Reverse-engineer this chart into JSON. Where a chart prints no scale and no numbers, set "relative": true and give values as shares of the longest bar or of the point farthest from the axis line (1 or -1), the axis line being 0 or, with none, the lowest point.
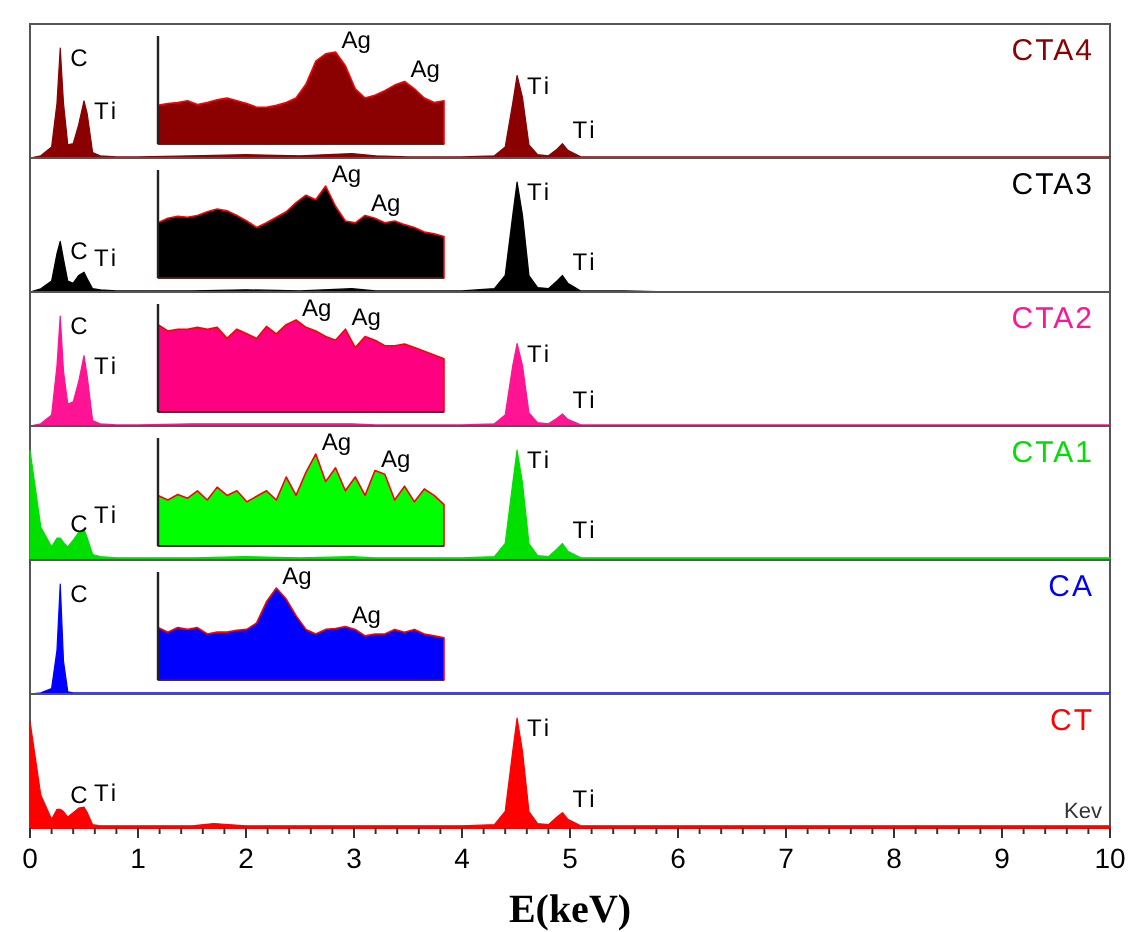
{
  "chart_data": [
    {
      "type": "area",
      "relative": true,
      "legend": "top right",
      "tick_labels": false,
      "xlim": [
        0,
        10
      ],
      "x": [
        0,
        0.1,
        0.2,
        0.25,
        0.28,
        0.31,
        0.35,
        0.4,
        0.45,
        0.5,
        0.53,
        0.58,
        0.65,
        0.8,
        1.0,
        1.5,
        2.0,
        2.5,
        2.98,
        3.2,
        3.5,
        4.0,
        4.3,
        4.4,
        4.47,
        4.51,
        4.56,
        4.62,
        4.7,
        4.8,
        4.88,
        4.93,
        4.98,
        5.1,
        5.5,
        6,
        7,
        8,
        9,
        10
      ],
      "series": [
        {
          "name": "CTA4",
          "color": "#8b0000",
          "values": [
            0,
            0.02,
            0.1,
            0.5,
            1,
            0.5,
            0.12,
            0.13,
            0.3,
            0.52,
            0.4,
            0.05,
            0.02,
            0.01,
            0.01,
            0.02,
            0.03,
            0.02,
            0.04,
            0.02,
            0.01,
            0.01,
            0.02,
            0.1,
            0.5,
            0.75,
            0.55,
            0.12,
            0.03,
            0.02,
            0.08,
            0.13,
            0.07,
            0.01,
            0.01,
            0.01,
            0.01,
            0.01,
            0.01,
            0.01
          ]
        }
      ],
      "annotations": [
        {
          "text": "C",
          "x": 0.28,
          "y": 1
        },
        {
          "text": "Ti",
          "x": 0.5,
          "y": 0.52
        },
        {
          "text": "Ti",
          "x": 4.51,
          "y": 0.75
        },
        {
          "text": "Ti",
          "x": 4.93,
          "y": 0.13
        }
      ]
    },
    {
      "type": "area",
      "relative": true,
      "categories": [
        null,
        null,
        null,
        null,
        null,
        null,
        null,
        null,
        null,
        null,
        null,
        null,
        null,
        null,
        null,
        null,
        null,
        null,
        null,
        null,
        null,
        null,
        null,
        null,
        null,
        null,
        null,
        null,
        null,
        null
      ],
      "series": [
        {
          "color": "#8b0000",
          "values": [
            0.42,
            0.44,
            0.45,
            0.47,
            0.43,
            0.45,
            0.48,
            0.5,
            0.47,
            0.44,
            0.4,
            0.4,
            0.42,
            0.45,
            0.5,
            0.65,
            0.9,
            0.98,
            1,
            0.85,
            0.6,
            0.5,
            0.53,
            0.58,
            0.64,
            0.68,
            0.6,
            0.5,
            0.45,
            0.47
          ]
        }
      ],
      "annotations": [
        "Ag",
        "Ag"
      ]
    },
    {
      "type": "area",
      "relative": true,
      "legend": "top right",
      "tick_labels": false,
      "xlim": [
        0,
        10
      ],
      "x": [
        0,
        0.1,
        0.2,
        0.25,
        0.28,
        0.31,
        0.35,
        0.4,
        0.45,
        0.5,
        0.53,
        0.58,
        0.65,
        0.8,
        1.0,
        1.5,
        2.0,
        2.5,
        2.98,
        3.2,
        3.5,
        4.0,
        4.3,
        4.4,
        4.47,
        4.51,
        4.56,
        4.62,
        4.7,
        4.8,
        4.88,
        4.93,
        4.98,
        5.1,
        5.5,
        6,
        7,
        8,
        9,
        10
      ],
      "series": [
        {
          "name": "CTA3",
          "color": "#000000",
          "values": [
            0,
            0.03,
            0.1,
            0.35,
            0.46,
            0.3,
            0.1,
            0.08,
            0.15,
            0.18,
            0.12,
            0.03,
            0.02,
            0.01,
            0.01,
            0.01,
            0.02,
            0.01,
            0.03,
            0.01,
            0.01,
            0.01,
            0.03,
            0.15,
            0.7,
            1,
            0.7,
            0.15,
            0.04,
            0.03,
            0.1,
            0.15,
            0.08,
            0.01,
            0.01,
            0,
            0,
            0,
            0,
            0
          ]
        }
      ],
      "annotations": [
        {
          "text": "C",
          "x": 0.28,
          "y": 0.46
        },
        {
          "text": "Ti",
          "x": 0.5,
          "y": 0.18
        },
        {
          "text": "Ti",
          "x": 4.51,
          "y": 1
        },
        {
          "text": "Ti",
          "x": 4.93,
          "y": 0.15
        }
      ]
    },
    {
      "type": "area",
      "relative": true,
      "categories": [
        null,
        null,
        null,
        null,
        null,
        null,
        null,
        null,
        null,
        null,
        null,
        null,
        null,
        null,
        null,
        null,
        null,
        null,
        null,
        null,
        null,
        null,
        null,
        null,
        null,
        null,
        null,
        null,
        null,
        null
      ],
      "series": [
        {
          "color": "#000000",
          "values": [
            0.6,
            0.65,
            0.67,
            0.66,
            0.68,
            0.72,
            0.75,
            0.73,
            0.68,
            0.62,
            0.55,
            0.6,
            0.66,
            0.72,
            0.82,
            0.9,
            0.85,
            1,
            0.78,
            0.62,
            0.6,
            0.68,
            0.65,
            0.6,
            0.62,
            0.58,
            0.55,
            0.5,
            0.48,
            0.45
          ]
        }
      ],
      "annotations": [
        "Ag",
        "Ag"
      ]
    },
    {
      "type": "area",
      "relative": true,
      "legend": "top right",
      "tick_labels": false,
      "xlim": [
        0,
        10
      ],
      "x": [
        0,
        0.1,
        0.2,
        0.25,
        0.28,
        0.31,
        0.35,
        0.4,
        0.45,
        0.5,
        0.53,
        0.58,
        0.65,
        0.8,
        1.0,
        1.5,
        2.0,
        2.5,
        2.98,
        3.2,
        3.5,
        4.0,
        4.3,
        4.4,
        4.47,
        4.51,
        4.56,
        4.62,
        4.7,
        4.8,
        4.88,
        4.93,
        4.98,
        5.1,
        5.5,
        6,
        7,
        8,
        9,
        10
      ],
      "series": [
        {
          "name": "CTA2",
          "color": "#ff1493",
          "values": [
            0,
            0.02,
            0.1,
            0.55,
            1,
            0.5,
            0.2,
            0.22,
            0.4,
            0.64,
            0.45,
            0.05,
            0.02,
            0.01,
            0.01,
            0.02,
            0.02,
            0.02,
            0.02,
            0.01,
            0.01,
            0.01,
            0.02,
            0.1,
            0.55,
            0.75,
            0.55,
            0.12,
            0.03,
            0.02,
            0.07,
            0.11,
            0.06,
            0.01,
            0.01,
            0.01,
            0.01,
            0.01,
            0.01,
            0.01
          ]
        }
      ],
      "annotations": [
        {
          "text": "C",
          "x": 0.28,
          "y": 1
        },
        {
          "text": "Ti",
          "x": 0.5,
          "y": 0.64
        },
        {
          "text": "Ti",
          "x": 4.51,
          "y": 0.75
        },
        {
          "text": "Ti",
          "x": 4.93,
          "y": 0.11
        }
      ]
    },
    {
      "type": "area",
      "relative": true,
      "categories": [
        null,
        null,
        null,
        null,
        null,
        null,
        null,
        null,
        null,
        null,
        null,
        null,
        null,
        null,
        null,
        null,
        null,
        null,
        null,
        null,
        null,
        null,
        null,
        null,
        null,
        null,
        null,
        null,
        null,
        null
      ],
      "series": [
        {
          "color": "#ff0080",
          "values": [
            0.95,
            0.88,
            0.9,
            0.9,
            0.92,
            0.9,
            0.92,
            0.8,
            0.9,
            0.85,
            0.8,
            0.93,
            0.85,
            0.95,
            1,
            0.92,
            0.88,
            0.82,
            0.78,
            0.9,
            0.7,
            0.82,
            0.78,
            0.72,
            0.72,
            0.74,
            0.7,
            0.66,
            0.62,
            0.58
          ]
        }
      ],
      "annotations": [
        "Ag",
        "Ag"
      ]
    },
    {
      "type": "area",
      "relative": true,
      "legend": "top right",
      "tick_labels": false,
      "xlim": [
        0,
        10
      ],
      "x": [
        0,
        0.1,
        0.2,
        0.25,
        0.28,
        0.31,
        0.35,
        0.4,
        0.45,
        0.5,
        0.53,
        0.58,
        0.65,
        0.8,
        1.0,
        1.5,
        2.0,
        2.5,
        2.98,
        3.2,
        3.5,
        4.0,
        4.3,
        4.4,
        4.47,
        4.51,
        4.56,
        4.62,
        4.7,
        4.8,
        4.88,
        4.93,
        4.98,
        5.1,
        5.5,
        6,
        7,
        8,
        9,
        10
      ],
      "series": [
        {
          "name": "CTA1",
          "color": "#00e000",
          "values": [
            1,
            0.3,
            0.12,
            0.2,
            0.2,
            0.16,
            0.12,
            0.18,
            0.25,
            0.28,
            0.2,
            0.05,
            0.03,
            0.02,
            0.02,
            0.02,
            0.03,
            0.02,
            0.03,
            0.02,
            0.02,
            0.02,
            0.03,
            0.15,
            0.7,
            1,
            0.7,
            0.15,
            0.04,
            0.03,
            0.1,
            0.15,
            0.08,
            0.02,
            0.02,
            0.02,
            0.02,
            0.02,
            0.02,
            0.02
          ]
        }
      ],
      "annotations": [
        {
          "text": "C",
          "x": 0.28,
          "y": 0.2
        },
        {
          "text": "Ti",
          "x": 0.5,
          "y": 0.28
        },
        {
          "text": "Ti",
          "x": 4.51,
          "y": 1
        },
        {
          "text": "Ti",
          "x": 4.93,
          "y": 0.15
        }
      ]
    },
    {
      "type": "area",
      "relative": true,
      "categories": [
        null,
        null,
        null,
        null,
        null,
        null,
        null,
        null,
        null,
        null,
        null,
        null,
        null,
        null,
        null,
        null,
        null,
        null,
        null,
        null,
        null,
        null,
        null,
        null,
        null,
        null,
        null,
        null,
        null,
        null
      ],
      "series": [
        {
          "color": "#00ff00",
          "values": [
            0.55,
            0.5,
            0.56,
            0.52,
            0.6,
            0.5,
            0.64,
            0.55,
            0.6,
            0.48,
            0.54,
            0.6,
            0.5,
            0.75,
            0.55,
            0.8,
            1,
            0.7,
            0.85,
            0.6,
            0.75,
            0.55,
            0.82,
            0.78,
            0.5,
            0.65,
            0.48,
            0.62,
            0.55,
            0.45
          ]
        }
      ],
      "annotations": [
        "Ag",
        "Ag"
      ]
    },
    {
      "type": "area",
      "relative": true,
      "legend": "top right",
      "tick_labels": false,
      "xlim": [
        0,
        10
      ],
      "x": [
        0,
        0.1,
        0.2,
        0.25,
        0.28,
        0.31,
        0.35,
        0.4,
        0.5,
        1,
        2,
        3,
        4,
        5,
        6,
        7,
        8,
        9,
        10
      ],
      "series": [
        {
          "name": "CA",
          "color": "#0000ff",
          "values": [
            0,
            0.01,
            0.05,
            0.4,
            1,
            0.3,
            0.02,
            0.01,
            0.01,
            0.01,
            0.01,
            0.01,
            0.01,
            0.01,
            0.01,
            0.01,
            0.01,
            0.01,
            0.01
          ]
        }
      ],
      "annotations": [
        {
          "text": "C",
          "x": 0.28,
          "y": 1
        }
      ]
    },
    {
      "type": "area",
      "relative": true,
      "categories": [
        null,
        null,
        null,
        null,
        null,
        null,
        null,
        null,
        null,
        null,
        null,
        null,
        null,
        null,
        null,
        null,
        null,
        null,
        null,
        null,
        null,
        null,
        null,
        null,
        null,
        null,
        null,
        null,
        null,
        null
      ],
      "series": [
        {
          "color": "#0000ff",
          "values": [
            0.57,
            0.52,
            0.57,
            0.55,
            0.57,
            0.5,
            0.52,
            0.52,
            0.54,
            0.55,
            0.62,
            0.85,
            1,
            0.88,
            0.7,
            0.55,
            0.5,
            0.55,
            0.56,
            0.58,
            0.55,
            0.48,
            0.5,
            0.5,
            0.55,
            0.52,
            0.55,
            0.5,
            0.48,
            0.46
          ]
        }
      ],
      "annotations": [
        "Ag",
        "Ag"
      ]
    },
    {
      "type": "area",
      "relative": true,
      "legend": "top right",
      "tick_labels": "x",
      "xlim": [
        0,
        10
      ],
      "xlabel": "E(keV)",
      "xticks": [
        0,
        {
          "value": 0.2,
          "label": null
        },
        {
          "value": 0.4,
          "label": null
        },
        {
          "value": 0.6,
          "label": null
        },
        {
          "value": 0.8,
          "label": null
        },
        1,
        {
          "value": 1.2,
          "label": null
        },
        {
          "value": 1.4,
          "label": null
        },
        {
          "value": 1.6,
          "label": null
        },
        {
          "value": 1.8,
          "label": null
        },
        2,
        {
          "value": 2.2,
          "label": null
        },
        {
          "value": 2.4,
          "label": null
        },
        {
          "value": 2.6,
          "label": null
        },
        {
          "value": 2.8,
          "label": null
        },
        3,
        {
          "value": 3.2,
          "label": null
        },
        {
          "value": 3.4,
          "label": null
        },
        {
          "value": 3.6,
          "label": null
        },
        {
          "value": 3.8,
          "label": null
        },
        4,
        {
          "value": 4.2,
          "label": null
        },
        {
          "value": 4.4,
          "label": null
        },
        {
          "value": 4.6,
          "label": null
        },
        {
          "value": 4.8,
          "label": null
        },
        5,
        {
          "value": 5.2,
          "label": null
        },
        {
          "value": 5.4,
          "label": null
        },
        {
          "value": 5.6,
          "label": null
        },
        {
          "value": 5.8,
          "label": null
        },
        6,
        {
          "value": 6.2,
          "label": null
        },
        {
          "value": 6.4,
          "label": null
        },
        {
          "value": 6.6,
          "label": null
        },
        {
          "value": 6.8,
          "label": null
        },
        7,
        {
          "value": 7.2,
          "label": null
        },
        {
          "value": 7.4,
          "label": null
        },
        {
          "value": 7.6,
          "label": null
        },
        {
          "value": 7.8,
          "label": null
        },
        8,
        {
          "value": 8.2,
          "label": null
        },
        {
          "value": 8.4,
          "label": null
        },
        {
          "value": 8.6,
          "label": null
        },
        {
          "value": 8.8,
          "label": null
        },
        9,
        {
          "value": 9.2,
          "label": null
        },
        {
          "value": 9.4,
          "label": null
        },
        {
          "value": 9.6,
          "label": null
        },
        {
          "value": 9.8,
          "label": null
        },
        10
      ],
      "x": [
        0,
        0.1,
        0.2,
        0.25,
        0.28,
        0.31,
        0.35,
        0.4,
        0.45,
        0.5,
        0.53,
        0.58,
        0.65,
        0.8,
        1.0,
        1.5,
        1.7,
        2.0,
        2.5,
        2.98,
        3.2,
        3.5,
        4.0,
        4.3,
        4.4,
        4.47,
        4.51,
        4.56,
        4.62,
        4.7,
        4.8,
        4.88,
        4.93,
        4.98,
        5.1,
        5.5,
        6,
        7,
        8,
        9,
        10
      ],
      "series": [
        {
          "name": "CT",
          "color": "#ff0000",
          "values": [
            0.97,
            0.3,
            0.08,
            0.17,
            0.17,
            0.15,
            0.1,
            0.14,
            0.18,
            0.19,
            0.14,
            0.03,
            0.02,
            0.02,
            0.02,
            0.02,
            0.04,
            0.02,
            0.02,
            0.02,
            0.02,
            0.02,
            0.02,
            0.03,
            0.15,
            0.7,
            1,
            0.7,
            0.15,
            0.04,
            0.03,
            0.1,
            0.14,
            0.08,
            0.02,
            0.02,
            0.02,
            0.02,
            0.02,
            0.02,
            0.02
          ]
        }
      ],
      "annotations": [
        {
          "text": "C",
          "x": 0.28,
          "y": 0.17
        },
        {
          "text": "Ti",
          "x": 0.5,
          "y": 0.19
        },
        {
          "text": "Ti",
          "x": 4.51,
          "y": 1
        },
        {
          "text": "Ti",
          "x": 4.93,
          "y": 0.14
        },
        "Kev"
      ]
    }
  ]
}
